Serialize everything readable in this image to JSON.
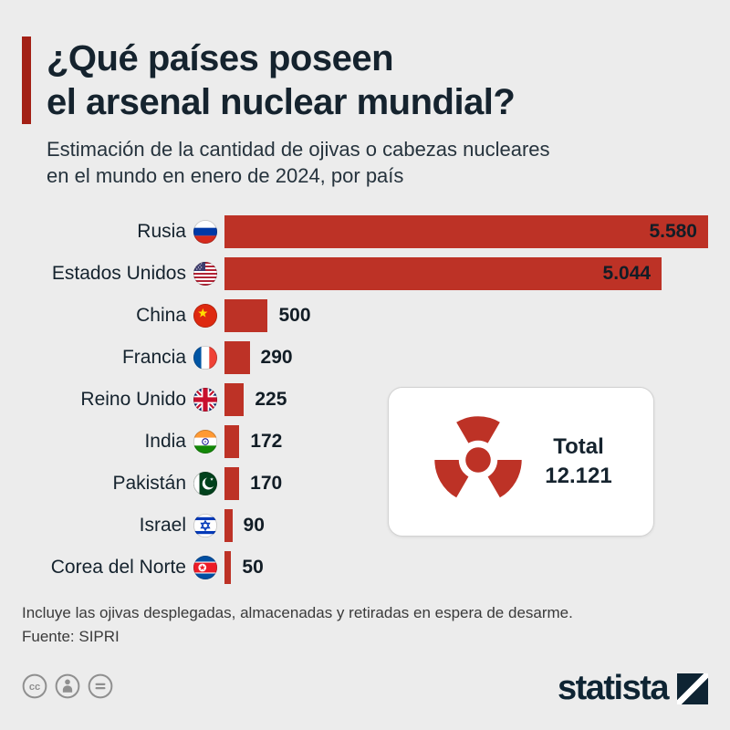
{
  "header": {
    "title_line1": "¿Qué países poseen",
    "title_line2": "el arsenal nuclear mundial?",
    "subtitle_line1": "Estimación de la cantidad de ojivas o cabezas nucleares",
    "subtitle_line2": "en el mundo en enero de 2024, por país"
  },
  "chart_data": {
    "type": "bar",
    "orientation": "horizontal",
    "title": "¿Qué países poseen el arsenal nuclear mundial?",
    "subtitle": "Estimación de la cantidad de ojivas o cabezas nucleares en el mundo en enero de 2024, por país",
    "categories": [
      "Rusia",
      "Estados Unidos",
      "China",
      "Francia",
      "Reino Unido",
      "India",
      "Pakistán",
      "Israel",
      "Corea del Norte"
    ],
    "values": [
      5580,
      5044,
      500,
      290,
      225,
      172,
      170,
      90,
      50
    ],
    "value_labels": [
      "5.580",
      "5.044",
      "500",
      "290",
      "225",
      "172",
      "170",
      "90",
      "50"
    ],
    "flags": [
      "ru",
      "us",
      "cn",
      "fr",
      "gb",
      "in",
      "pk",
      "il",
      "kp"
    ],
    "xlim": [
      0,
      5580
    ],
    "grid": false,
    "legend": false,
    "bar_color": "#bd3226",
    "total": 12121
  },
  "total_card": {
    "label": "Total",
    "value": "12.121",
    "icon": "radiation-icon"
  },
  "footer": {
    "note": "Incluye las ojivas desplegadas, almacenadas y retiradas en espera de desarme.",
    "source": "Fuente: SIPRI"
  },
  "brand": {
    "logo_text": "statista",
    "license_icons": [
      "cc-icon",
      "attribution-icon",
      "equals-icon"
    ]
  },
  "colors": {
    "background": "#ececec",
    "accent_red": "#a32015",
    "bar_red": "#bd3226",
    "title_navy": "#15232e"
  }
}
